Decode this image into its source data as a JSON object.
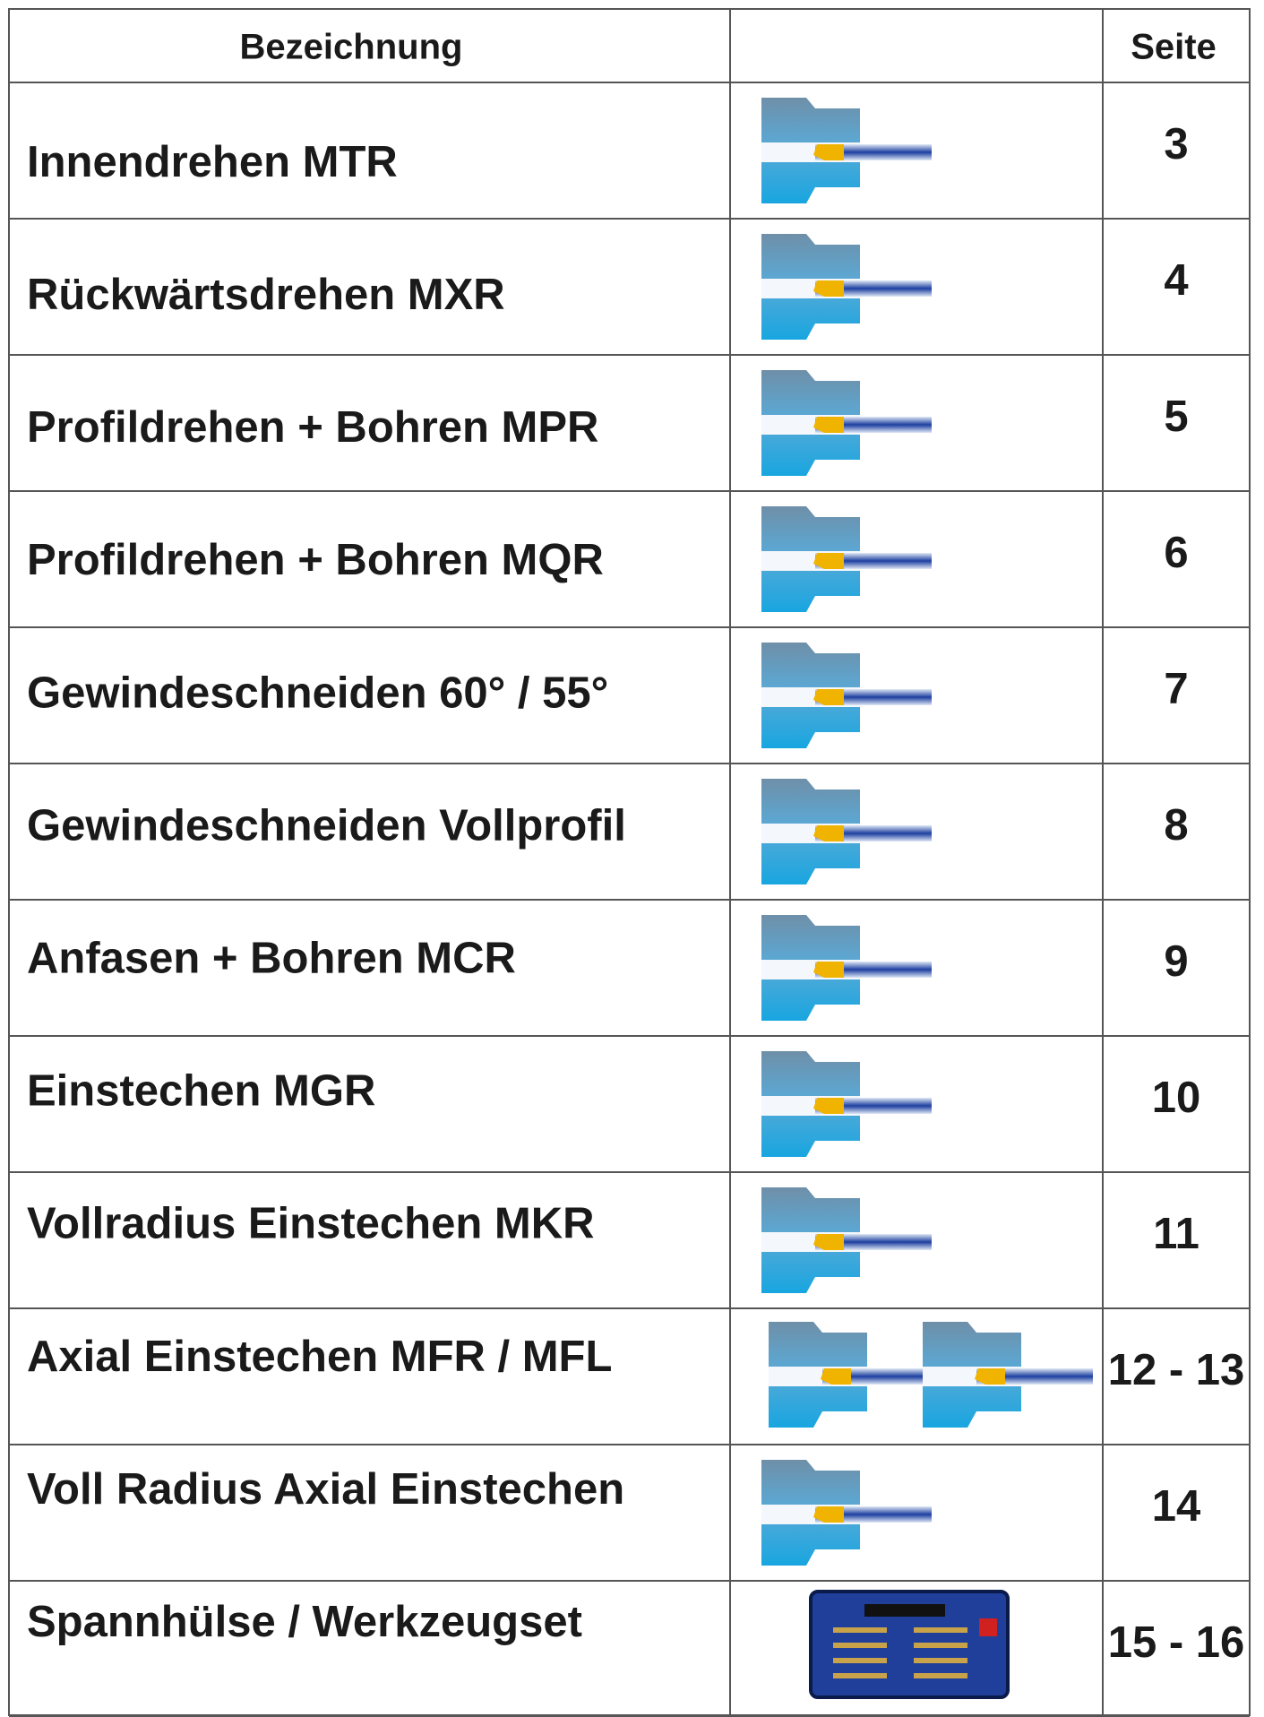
{
  "header": {
    "columns": [
      "Bezeichnung",
      "Seite"
    ]
  },
  "rows": [
    {
      "label": "Innendrehen MTR",
      "page": "3"
    },
    {
      "label": "Rückwärtsdrehen MXR",
      "page": "4"
    },
    {
      "label": "Profildrehen + Bohren MPR",
      "page": "5"
    },
    {
      "label": "Profildrehen + Bohren MQR",
      "page": "6"
    },
    {
      "label": "Gewindeschneiden 60° / 55°",
      "page": "7"
    },
    {
      "label": "Gewindeschneiden Vollprofil",
      "page": "8"
    },
    {
      "label": "Anfasen + Bohren MCR",
      "page": "9"
    },
    {
      "label": "Einstechen MGR",
      "page": "10"
    },
    {
      "label": "Vollradius Einstechen MKR",
      "page": "11"
    },
    {
      "label": "Axial Einstechen MFR / MFL",
      "page": "12 - 13"
    },
    {
      "label": "Voll Radius Axial Einstechen",
      "page": "14"
    },
    {
      "label": "Spannhülse / Werkzeugset",
      "page": "15 - 16"
    }
  ]
}
